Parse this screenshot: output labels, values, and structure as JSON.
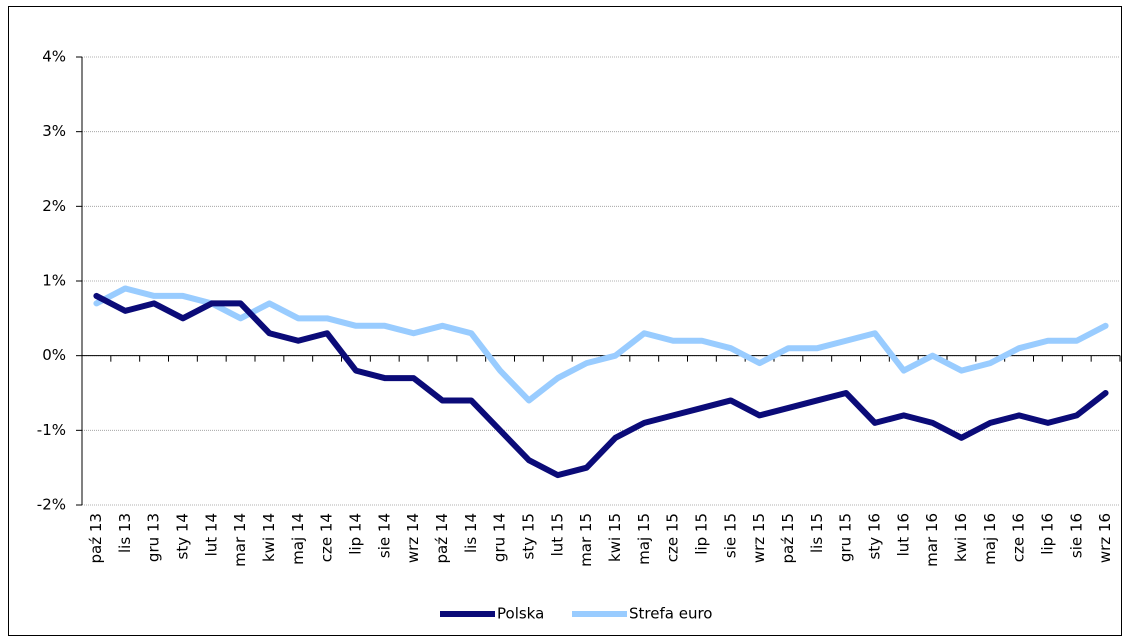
{
  "chart_data": {
    "type": "line",
    "categories": [
      "paź 13",
      "lis 13",
      "gru 13",
      "sty 14",
      "lut 14",
      "mar 14",
      "kwi 14",
      "maj 14",
      "cze 14",
      "lip 14",
      "sie 14",
      "wrz 14",
      "paź 14",
      "lis 14",
      "gru 14",
      "sty 15",
      "lut 15",
      "mar 15",
      "kwi 15",
      "maj 15",
      "cze 15",
      "lip 15",
      "sie 15",
      "wrz 15",
      "paź 15",
      "lis 15",
      "gru 15",
      "sty 16",
      "lut 16",
      "mar 16",
      "kwi 16",
      "maj 16",
      "cze 16",
      "lip 16",
      "sie 16",
      "wrz 16"
    ],
    "series": [
      {
        "name": "Polska",
        "color": "#0b0b78",
        "values": [
          0.8,
          0.6,
          0.7,
          0.5,
          0.7,
          0.7,
          0.3,
          0.2,
          0.3,
          -0.2,
          -0.3,
          -0.3,
          -0.6,
          -0.6,
          -1.0,
          -1.4,
          -1.6,
          -1.5,
          -1.1,
          -0.9,
          -0.8,
          -0.7,
          -0.6,
          -0.8,
          -0.7,
          -0.6,
          -0.5,
          -0.9,
          -0.8,
          -0.9,
          -1.1,
          -0.9,
          -0.8,
          -0.9,
          -0.8,
          -0.5
        ]
      },
      {
        "name": "Strefa euro",
        "color": "#99ccff",
        "values": [
          0.7,
          0.9,
          0.8,
          0.8,
          0.7,
          0.5,
          0.7,
          0.5,
          0.5,
          0.4,
          0.4,
          0.3,
          0.4,
          0.3,
          -0.2,
          -0.6,
          -0.3,
          -0.1,
          0.0,
          0.3,
          0.2,
          0.2,
          0.1,
          -0.1,
          0.1,
          0.1,
          0.2,
          0.3,
          -0.2,
          0.0,
          -0.2,
          -0.1,
          0.1,
          0.2,
          0.2,
          0.4
        ]
      }
    ],
    "ylim": [
      -2,
      4
    ],
    "yticks": [
      {
        "value": -2,
        "label": "-2%"
      },
      {
        "value": -1,
        "label": "-1%"
      },
      {
        "value": 0,
        "label": "0%"
      },
      {
        "value": 1,
        "label": "1%"
      },
      {
        "value": 2,
        "label": "2%"
      },
      {
        "value": 3,
        "label": "3%"
      },
      {
        "value": 4,
        "label": "4%"
      }
    ],
    "grid": true,
    "legend": "bottom"
  }
}
